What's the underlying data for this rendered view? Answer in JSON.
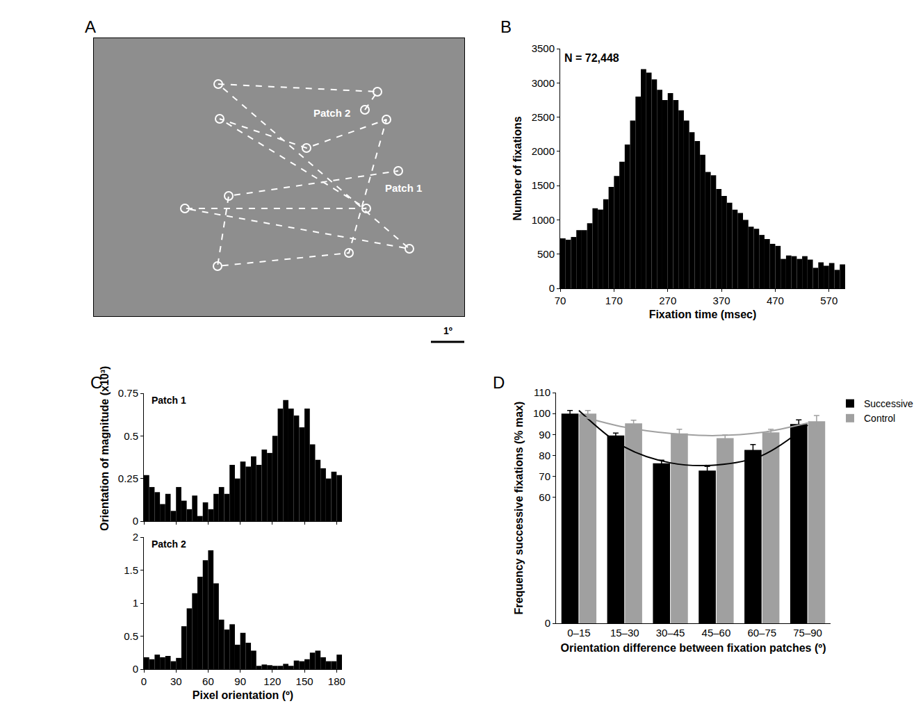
{
  "chart_data": [
    {
      "panel": "A",
      "type": "scatter",
      "x": [
        390,
        408,
        179,
        454,
        131,
        392,
        181,
        306,
        421,
        367,
        178,
        194,
        438
      ],
      "y": [
        297,
        323,
        334,
        97,
        155,
        155,
        284,
        242,
        283,
        91,
        72,
        173,
        209
      ],
      "xlim": [
        0,
        533
      ],
      "ylim": [
        0,
        400
      ],
      "tick_labels": false,
      "color": "#ffffff",
      "marker": "circle-open",
      "line_style": "dash",
      "annotations": [
        {
          "text": "Patch 1",
          "x": 445,
          "y": 185
        },
        {
          "text": "Patch 2",
          "x": 342,
          "y": 293
        }
      ],
      "scale_bar": {
        "label": "1º",
        "length": 48
      }
    },
    {
      "panel": "B",
      "type": "histogram",
      "bins": [
        70,
        80,
        90,
        100,
        110,
        120,
        130,
        140,
        150,
        160,
        170,
        180,
        190,
        200,
        210,
        220,
        230,
        240,
        250,
        260,
        270,
        280,
        290,
        300,
        310,
        320,
        330,
        340,
        350,
        360,
        370,
        380,
        390,
        400,
        410,
        420,
        430,
        440,
        450,
        460,
        470,
        480,
        490,
        500,
        510,
        520,
        530,
        540,
        550,
        560,
        570,
        580,
        590,
        600
      ],
      "values": [
        730,
        710,
        750,
        850,
        850,
        950,
        1170,
        1150,
        1300,
        1480,
        1640,
        1850,
        2100,
        2450,
        2800,
        3200,
        3150,
        3050,
        2900,
        2750,
        2850,
        2750,
        2600,
        2450,
        2280,
        2150,
        1950,
        1700,
        1650,
        1450,
        1350,
        1250,
        1150,
        1100,
        1000,
        900,
        870,
        780,
        720,
        650,
        620,
        430,
        480,
        470,
        430,
        470,
        420,
        300,
        380,
        330,
        370,
        270,
        350
      ],
      "color": "#000000",
      "xlim": [
        70,
        600
      ],
      "xticks": [
        70,
        170,
        270,
        370,
        470,
        570
      ],
      "ylim": [
        0,
        3500
      ],
      "yticks": [
        0,
        500,
        1000,
        1500,
        2000,
        2500,
        3000,
        3500
      ],
      "xlabel": "Fixation time (msec)",
      "ylabel": "Number of fixations",
      "annotation": "N = 72,448"
    },
    {
      "panel": "C",
      "type": "histogram",
      "title": "Patch 1",
      "bins": [
        0,
        5,
        10,
        15,
        20,
        25,
        30,
        35,
        40,
        45,
        50,
        55,
        60,
        65,
        70,
        75,
        80,
        85,
        90,
        95,
        100,
        105,
        110,
        115,
        120,
        125,
        130,
        135,
        140,
        145,
        150,
        155,
        160,
        165,
        170,
        175,
        180,
        185
      ],
      "values": [
        0.27,
        0.2,
        0.17,
        0.1,
        0.16,
        0.06,
        0.2,
        0.12,
        0.07,
        0.15,
        0.03,
        0.11,
        0.07,
        0.16,
        0.2,
        0.16,
        0.33,
        0.25,
        0.35,
        0.32,
        0.38,
        0.33,
        0.42,
        0.4,
        0.5,
        0.66,
        0.71,
        0.66,
        0.62,
        0.55,
        0.66,
        0.45,
        0.36,
        0.31,
        0.25,
        0.29,
        0.27
      ],
      "color": "#000000",
      "xlim": [
        0,
        185
      ],
      "xticks": [
        0,
        30,
        60,
        90,
        120,
        150,
        180
      ],
      "ylim": [
        0,
        0.75
      ],
      "yticks": [
        0,
        0.25,
        0.5,
        0.75
      ],
      "tick_labels": "y",
      "ylabel": "Orientation of magnitude (x10³)"
    },
    {
      "type": "histogram",
      "title": "Patch 2",
      "bins": [
        0,
        5,
        10,
        15,
        20,
        25,
        30,
        35,
        40,
        45,
        50,
        55,
        60,
        65,
        70,
        75,
        80,
        85,
        90,
        95,
        100,
        105,
        110,
        115,
        120,
        125,
        130,
        135,
        140,
        145,
        150,
        155,
        160,
        165,
        170,
        175,
        180,
        185
      ],
      "values": [
        0.18,
        0.15,
        0.22,
        0.18,
        0.2,
        0.12,
        0.17,
        0.65,
        0.92,
        1.15,
        1.4,
        1.65,
        1.8,
        1.3,
        0.75,
        0.6,
        0.68,
        0.37,
        0.55,
        0.4,
        0.28,
        0.05,
        0.07,
        0.06,
        0.05,
        0.05,
        0.08,
        0.05,
        0.13,
        0.12,
        0.15,
        0.25,
        0.28,
        0.18,
        0.12,
        0.12,
        0.22
      ],
      "color": "#000000",
      "xlim": [
        0,
        185
      ],
      "xticks": [
        0,
        30,
        60,
        90,
        120,
        150,
        180
      ],
      "ylim": [
        0,
        2
      ],
      "yticks": [
        0,
        0.5,
        1,
        1.5,
        2
      ],
      "xlabel": "Pixel orientation (º)"
    },
    {
      "panel": "D",
      "type": "bar",
      "categories": [
        "0–15",
        "15–30",
        "30–45",
        "45–60",
        "60–75",
        "75–90"
      ],
      "series": [
        {
          "name": "Successive",
          "color": "#000000",
          "values": [
            100,
            89.5,
            76.3,
            72.8,
            82.7,
            95
          ],
          "errors": [
            1.5,
            1.2,
            1.5,
            2,
            2.5,
            2
          ]
        },
        {
          "name": "Control",
          "color": "#a0a0a0",
          "values": [
            100,
            95.3,
            90.5,
            88.3,
            91,
            96.3
          ],
          "errors": [
            1.5,
            1.5,
            2,
            1.5,
            1.5,
            2.8
          ]
        }
      ],
      "fits": [
        {
          "type": "line",
          "color": "#000000",
          "values": [
            101.5,
            84,
            76.5,
            75.5,
            80,
            94.5
          ]
        },
        {
          "type": "line",
          "color": "#a0a0a0",
          "values": [
            99,
            93.5,
            90.5,
            89.5,
            91,
            95.5
          ]
        }
      ],
      "ylim": [
        0,
        110
      ],
      "yticks": [
        0,
        60,
        70,
        80,
        90,
        100,
        110
      ],
      "xlabel": "Orientation difference between fixation patches (º)",
      "ylabel": "Frequency successive fixations (% max)",
      "legend": "right"
    }
  ]
}
